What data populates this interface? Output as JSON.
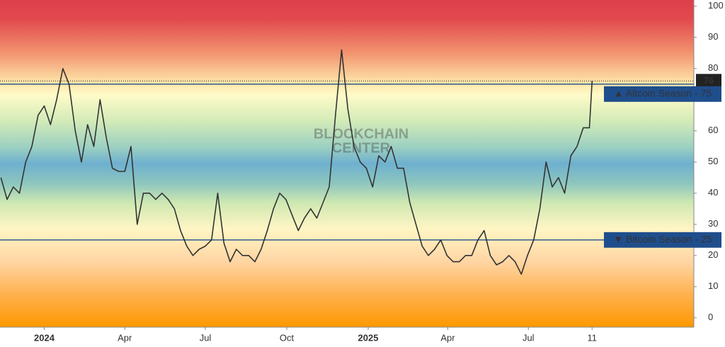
{
  "chart_data": {
    "type": "line",
    "x": [
      "2023-11-13",
      "2023-11-20",
      "2023-11-27",
      "2023-12-04",
      "2023-12-11",
      "2023-12-18",
      "2023-12-25",
      "2024-01-01",
      "2024-01-08",
      "2024-01-15",
      "2024-01-22",
      "2024-01-29",
      "2024-02-05",
      "2024-02-12",
      "2024-02-19",
      "2024-02-26",
      "2024-03-04",
      "2024-03-11",
      "2024-03-18",
      "2024-03-25",
      "2024-04-01",
      "2024-04-08",
      "2024-04-15",
      "2024-04-22",
      "2024-04-29",
      "2024-05-06",
      "2024-05-13",
      "2024-05-20",
      "2024-05-27",
      "2024-06-03",
      "2024-06-10",
      "2024-06-17",
      "2024-06-24",
      "2024-07-01",
      "2024-07-08",
      "2024-07-15",
      "2024-07-22",
      "2024-07-29",
      "2024-08-05",
      "2024-08-12",
      "2024-08-19",
      "2024-08-26",
      "2024-09-02",
      "2024-09-09",
      "2024-09-16",
      "2024-09-23",
      "2024-09-30",
      "2024-10-07",
      "2024-10-14",
      "2024-10-21",
      "2024-10-28",
      "2024-11-04",
      "2024-11-11",
      "2024-11-18",
      "2024-11-25",
      "2024-12-02",
      "2024-12-09",
      "2024-12-16",
      "2024-12-23",
      "2024-12-30",
      "2025-01-06",
      "2025-01-13",
      "2025-01-20",
      "2025-01-27",
      "2025-02-03",
      "2025-02-10",
      "2025-02-17",
      "2025-02-24",
      "2025-03-03",
      "2025-03-10",
      "2025-03-17",
      "2025-03-24",
      "2025-03-31",
      "2025-04-07",
      "2025-04-14",
      "2025-04-21",
      "2025-04-28",
      "2025-05-05",
      "2025-05-12",
      "2025-05-19",
      "2025-05-26",
      "2025-06-02",
      "2025-06-09",
      "2025-06-16",
      "2025-06-23",
      "2025-06-30",
      "2025-07-07",
      "2025-07-14",
      "2025-07-21",
      "2025-07-28",
      "2025-08-04",
      "2025-08-11",
      "2025-08-18",
      "2025-08-25",
      "2025-09-01",
      "2025-09-08",
      "2025-09-11"
    ],
    "series": [
      {
        "color": "#333333",
        "values": [
          45,
          38,
          42,
          40,
          50,
          55,
          65,
          68,
          62,
          70,
          80,
          75,
          60,
          50,
          62,
          55,
          70,
          58,
          48,
          47,
          47,
          55,
          30,
          40,
          40,
          38,
          40,
          38,
          35,
          28,
          23,
          20,
          22,
          23,
          25,
          40,
          24,
          18,
          22,
          20,
          20,
          18,
          22,
          28,
          35,
          40,
          38,
          33,
          28,
          32,
          35,
          32,
          37,
          42,
          65,
          86,
          67,
          55,
          50,
          48,
          42,
          52,
          50,
          55,
          48,
          48,
          37,
          30,
          23,
          20,
          22,
          25,
          20,
          18,
          18,
          20,
          20,
          25,
          28,
          20,
          17,
          18,
          20,
          18,
          14,
          20,
          25,
          35,
          50,
          42,
          45,
          40,
          52,
          55,
          61,
          61,
          76
        ]
      }
    ],
    "xlim": [
      "2023-11-12",
      "2026-01-04"
    ],
    "xticks": [
      {
        "value": "2024-01-01",
        "label": "2024"
      },
      {
        "value": "2024-04-01",
        "label": "Apr"
      },
      {
        "value": "2024-07-01",
        "label": "Jul"
      },
      {
        "value": "2024-10-01",
        "label": "Oct"
      },
      {
        "value": "2025-01-01",
        "label": "2025"
      },
      {
        "value": "2025-04-01",
        "label": "Apr"
      },
      {
        "value": "2025-07-01",
        "label": "Jul"
      },
      {
        "value": "2025-09-11",
        "label": "11"
      }
    ],
    "ylim": [
      -3,
      102
    ],
    "yticks": [
      0,
      10,
      20,
      30,
      40,
      50,
      60,
      80,
      90,
      100
    ],
    "thresholds": [
      {
        "value": 75,
        "label": "▲ Altcoin Season - 75"
      },
      {
        "value": 25,
        "label": "▼ Bitcoin Season - 25"
      }
    ],
    "current_value": 76,
    "watermark": [
      "BLOCKCHAIN",
      "CENTER"
    ]
  }
}
